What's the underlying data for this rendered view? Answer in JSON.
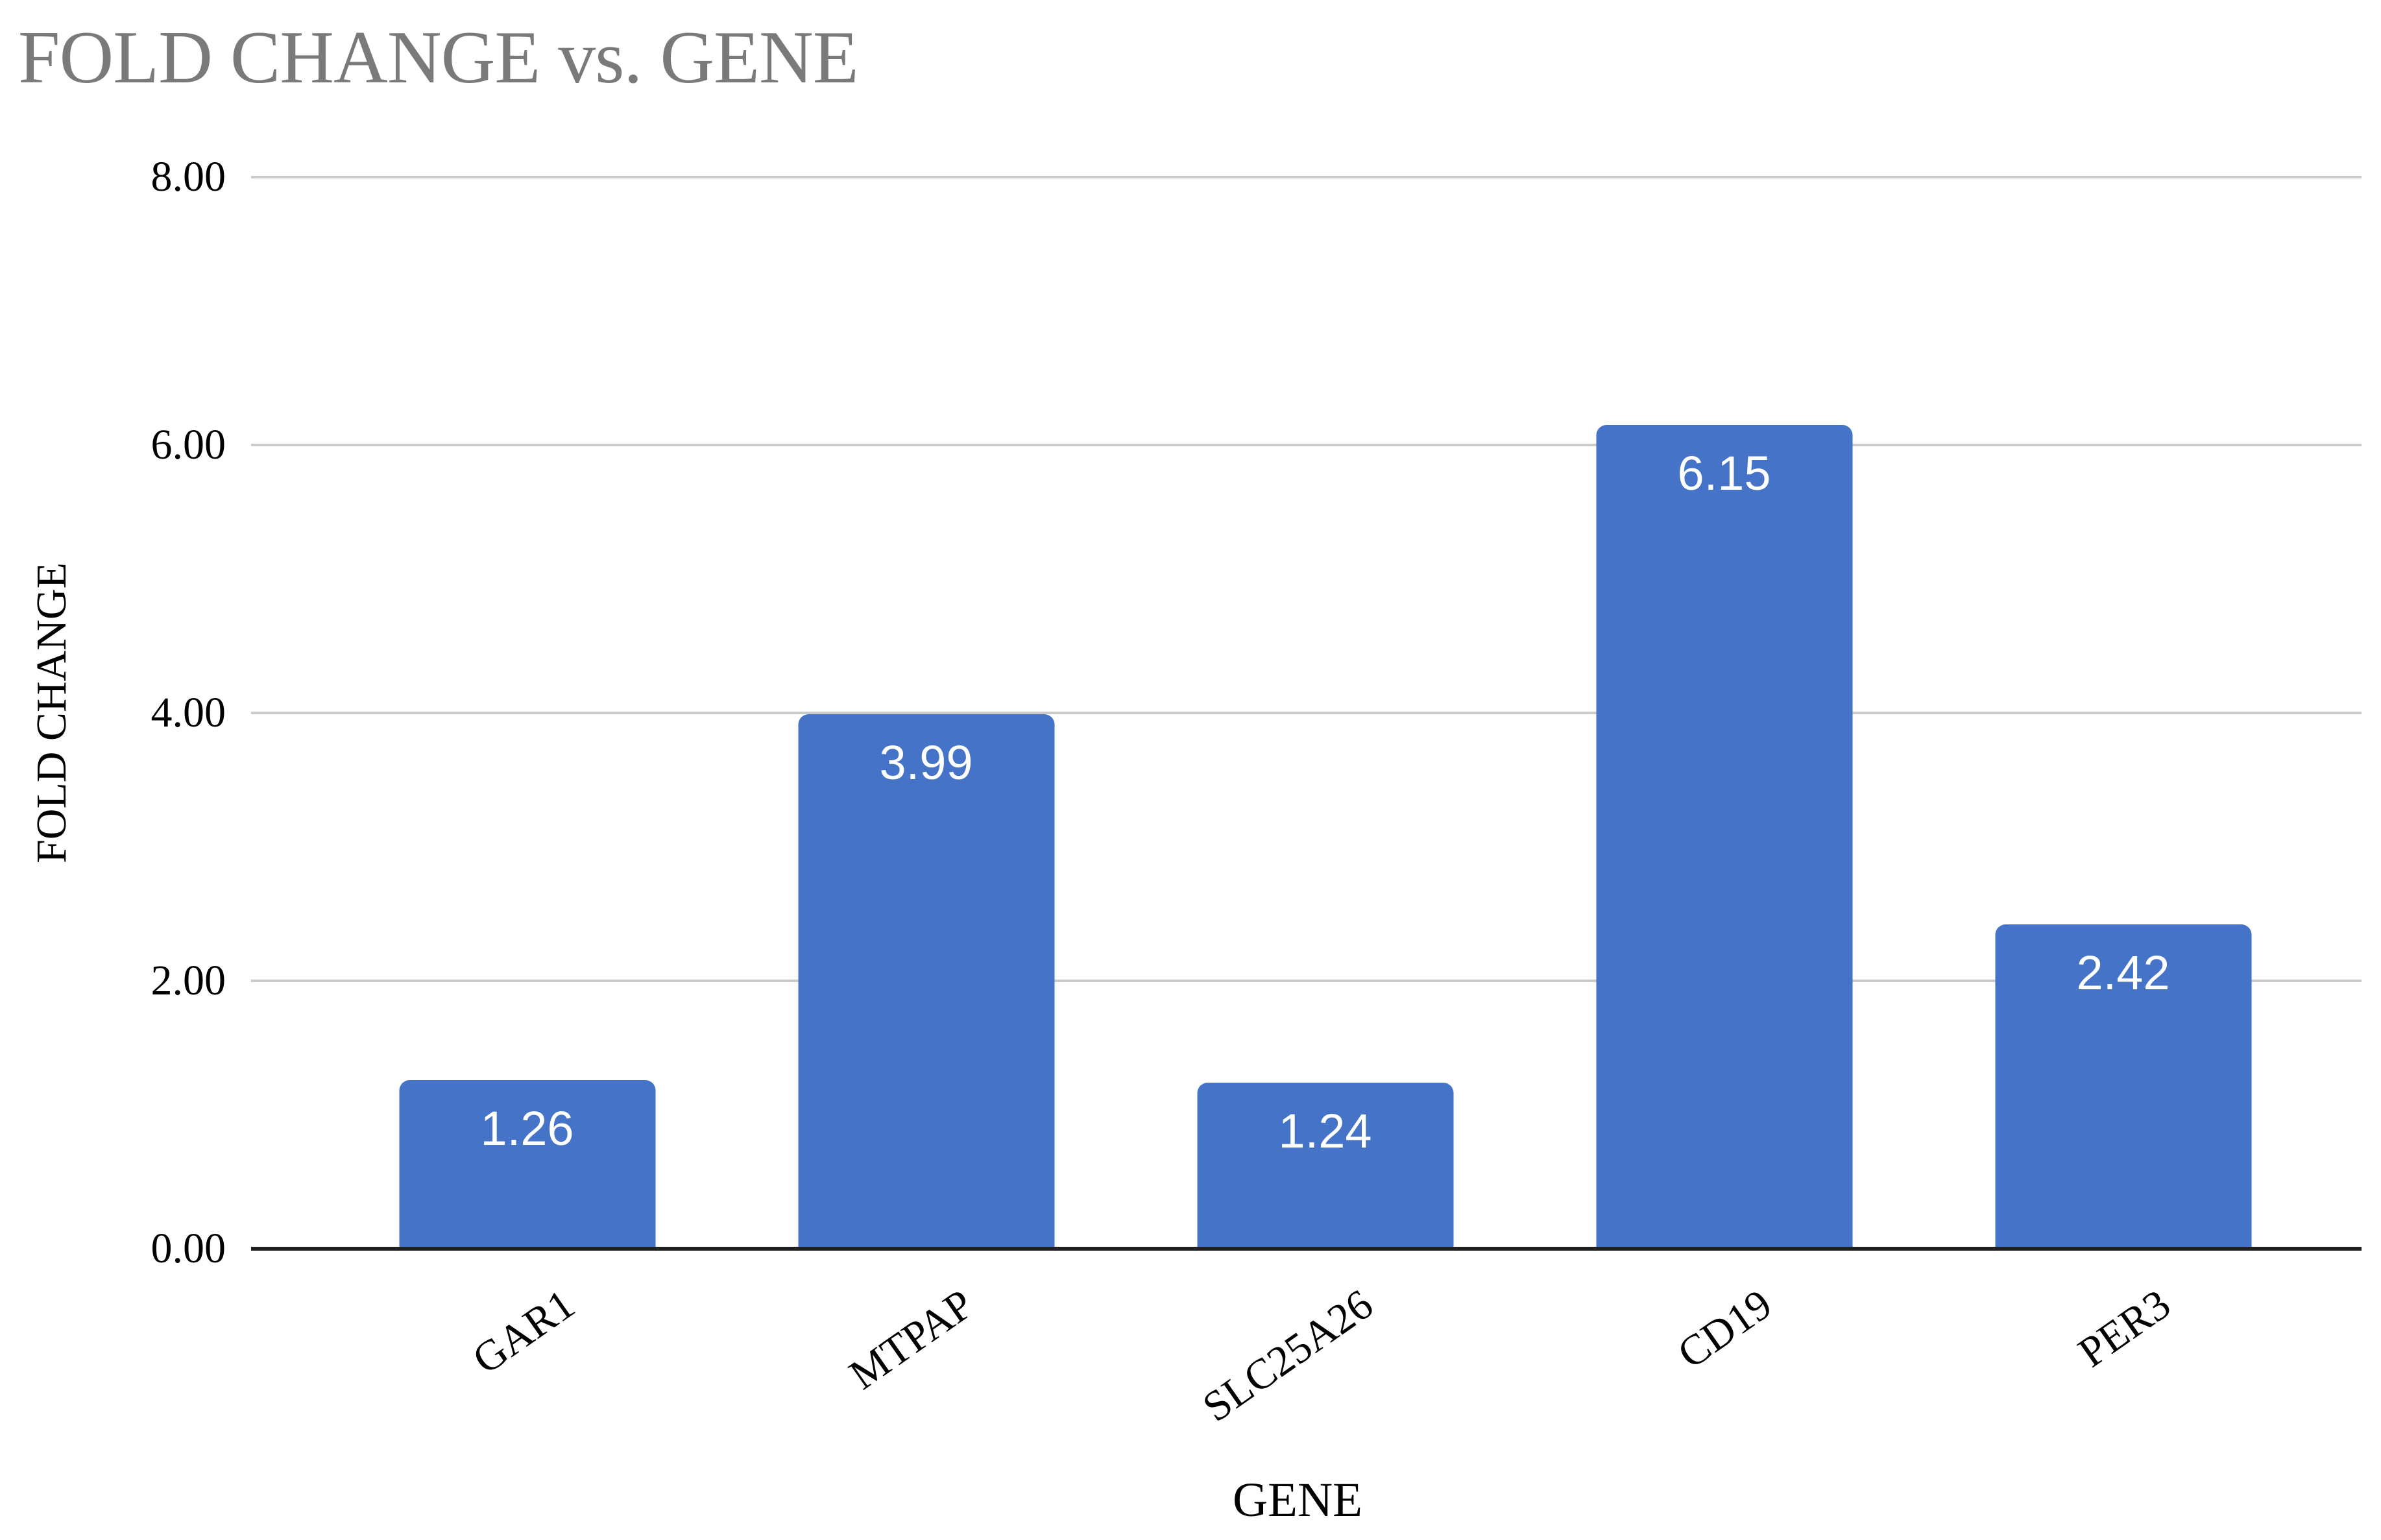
{
  "title": "FOLD CHANGE vs. GENE",
  "axes": {
    "x_title": "GENE",
    "y_title": "FOLD CHANGE"
  },
  "chart_data": {
    "type": "bar",
    "title": "FOLD CHANGE vs. GENE",
    "xlabel": "GENE",
    "ylabel": "FOLD CHANGE",
    "categories": [
      "GAR1",
      "MTPAP",
      "SLC25A26",
      "CD19",
      "PER3"
    ],
    "values": [
      1.26,
      3.99,
      1.24,
      6.15,
      2.42
    ],
    "bar_labels": [
      "1.26",
      "3.99",
      "1.24",
      "6.15",
      "2.42"
    ],
    "ylim": [
      0,
      8
    ],
    "yticks": [
      8,
      6,
      4,
      2,
      0
    ],
    "ytick_labels": [
      "8.00",
      "6.00",
      "4.00",
      "2.00",
      "0.00"
    ],
    "grid": true,
    "legend": false,
    "series_name": "FOLD CHANGE",
    "colors": {
      "bar": "#4473c8",
      "bar_label_text": "#ffffff",
      "title_text": "#7a7a7a",
      "axis_text": "#000000",
      "gridline": "#cacaca",
      "baseline_axis": "#212121",
      "background": "#ffffff"
    }
  }
}
